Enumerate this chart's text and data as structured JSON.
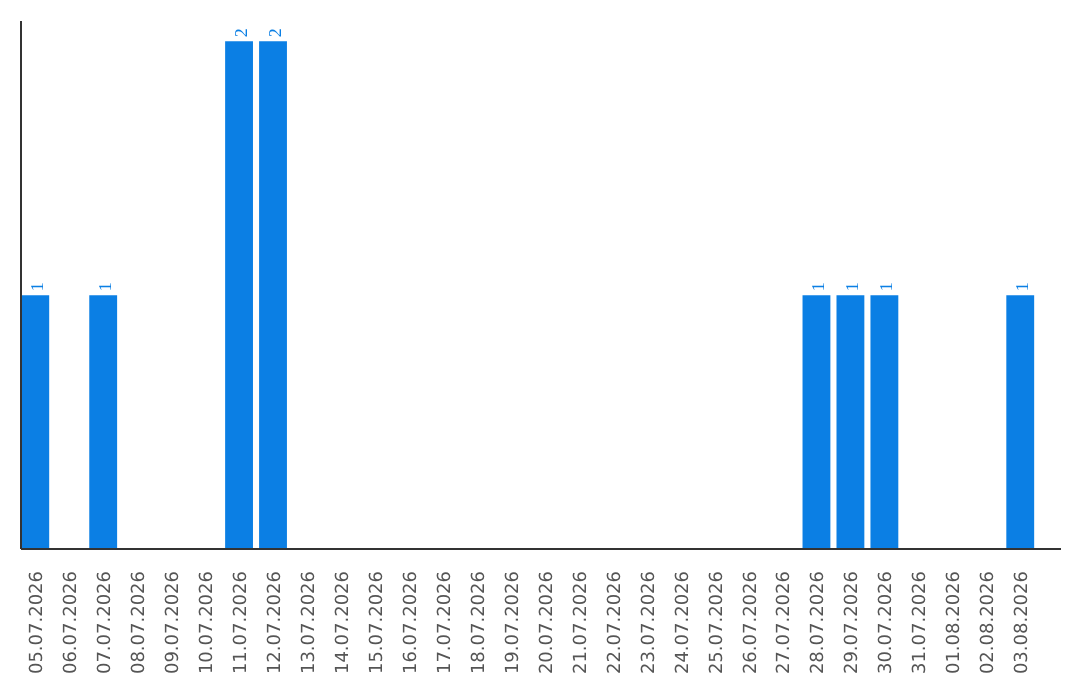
{
  "chart_data": {
    "type": "bar",
    "categories": [
      "05.07.2026",
      "06.07.2026",
      "07.07.2026",
      "08.07.2026",
      "09.07.2026",
      "10.07.2026",
      "11.07.2026",
      "12.07.2026",
      "13.07.2026",
      "14.07.2026",
      "15.07.2026",
      "16.07.2026",
      "17.07.2026",
      "18.07.2026",
      "19.07.2026",
      "20.07.2026",
      "21.07.2026",
      "22.07.2026",
      "23.07.2026",
      "24.07.2026",
      "25.07.2026",
      "26.07.2026",
      "27.07.2026",
      "28.07.2026",
      "29.07.2026",
      "30.07.2026",
      "31.07.2026",
      "01.08.2026",
      "02.08.2026",
      "03.08.2026"
    ],
    "values": [
      1,
      0,
      1,
      0,
      0,
      0,
      2,
      2,
      0,
      0,
      0,
      0,
      0,
      0,
      0,
      0,
      0,
      0,
      0,
      0,
      0,
      0,
      0,
      1,
      1,
      1,
      0,
      0,
      0,
      1
    ],
    "color": "#0b7fe4",
    "ylim": [
      0,
      2.08
    ],
    "value_labels": [
      "1",
      null,
      "1",
      null,
      null,
      null,
      "2",
      "2",
      null,
      null,
      null,
      null,
      null,
      null,
      null,
      null,
      null,
      null,
      null,
      null,
      null,
      null,
      null,
      "1",
      "1",
      "1",
      null,
      null,
      null,
      "1"
    ],
    "tick_labels": "x",
    "grid": false
  }
}
